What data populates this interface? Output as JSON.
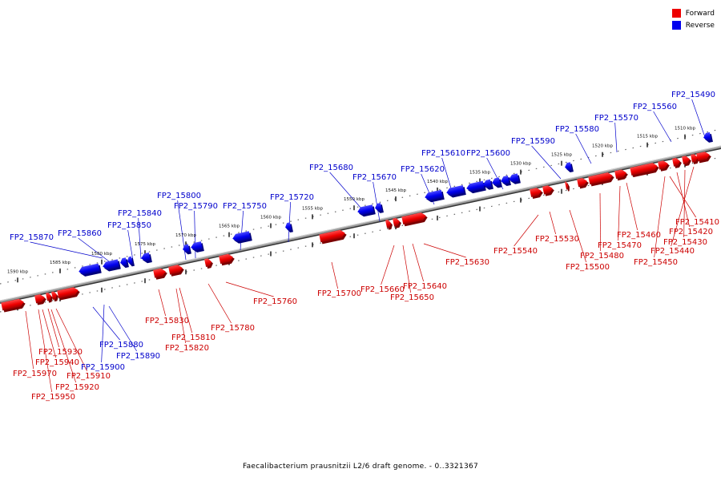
{
  "legend": {
    "forward": {
      "label": "Forward",
      "color": "#ee0000"
    },
    "reverse": {
      "label": "Reverse",
      "color": "#0000ee"
    }
  },
  "caption": "Faecalibacterium prausnitzii L2/6 draft genome. - 0..3321367",
  "ticks": [
    "1510 kbp",
    "1515 kbp",
    "1520 kbp",
    "1525 kbp",
    "1530 kbp",
    "1535 kbp",
    "1540 kbp",
    "1545 kbp",
    "1550 kbp",
    "1555 kbp",
    "1560 kbp",
    "1565 kbp",
    "1570 kbp",
    "1575 kbp",
    "1580 kbp",
    "1585 kbp",
    "1590 kbp"
  ],
  "genes": {
    "reverse": [
      "FP2_15490",
      "FP2_15560",
      "FP2_15570",
      "FP2_15580",
      "FP2_15590",
      "FP2_15600",
      "FP2_15610",
      "FP2_15620",
      "FP2_15670",
      "FP2_15680",
      "FP2_15720",
      "FP2_15750",
      "FP2_15790",
      "FP2_15800",
      "FP2_15840",
      "FP2_15850",
      "FP2_15860",
      "FP2_15870",
      "FP2_15880",
      "FP2_15890",
      "FP2_15900"
    ],
    "forward": [
      "FP2_15410",
      "FP2_15420",
      "FP2_15430",
      "FP2_15440",
      "FP2_15450",
      "FP2_15460",
      "FP2_15470",
      "FP2_15480",
      "FP2_15500",
      "FP2_15530",
      "FP2_15540",
      "FP2_15630",
      "FP2_15640",
      "FP2_15650",
      "FP2_15660",
      "FP2_15700",
      "FP2_15760",
      "FP2_15780",
      "FP2_15810",
      "FP2_15820",
      "FP2_15830",
      "FP2_15910",
      "FP2_15920",
      "FP2_15930",
      "FP2_15940",
      "FP2_15950",
      "FP2_15970"
    ]
  }
}
